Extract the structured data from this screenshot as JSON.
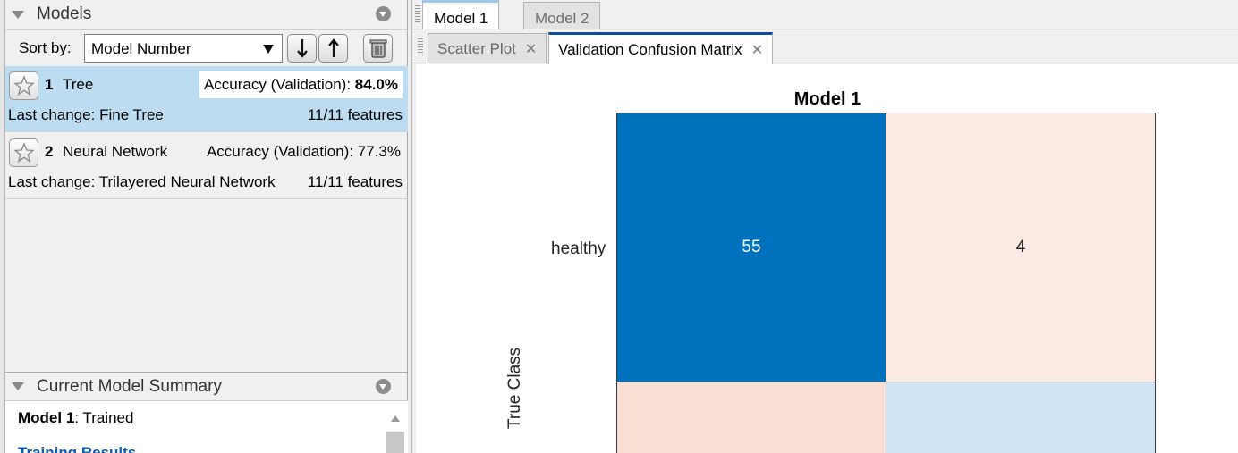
{
  "models_panel": {
    "title": "Models",
    "sort_label": "Sort by:",
    "sort_value": "Model Number",
    "models": [
      {
        "number": "1",
        "name": "Tree",
        "accuracy_label": "Accuracy (Validation):",
        "accuracy_value": "84.0%",
        "last_change": "Last change: Fine Tree",
        "features": "11/11 features",
        "selected": true
      },
      {
        "number": "2",
        "name": "Neural Network",
        "accuracy_label": "Accuracy (Validation):",
        "accuracy_value": "77.3%",
        "last_change": "Last change: Trilayered Neural Network",
        "features": "11/11 features",
        "selected": false
      }
    ]
  },
  "summary_panel": {
    "title": "Current Model Summary",
    "model_label": "Model 1",
    "status": ": Trained",
    "section_link": "Training Results"
  },
  "top_tabs": [
    "Model 1",
    "Model 2"
  ],
  "doc_tabs": [
    "Scatter Plot",
    "Validation Confusion Matrix"
  ],
  "chart": {
    "title": "Model 1",
    "y_axis_label": "True Class",
    "row_labels": [
      "healthy"
    ],
    "cells": [
      {
        "value": "55",
        "color": "#0072bd"
      },
      {
        "value": "4",
        "color": "#fbe9e3"
      },
      {
        "value": "",
        "color": "#f8dfd4"
      },
      {
        "value": "",
        "color": "#cfe3f2"
      }
    ]
  },
  "chart_data": {
    "type": "heatmap",
    "title": "Model 1",
    "ylabel": "True Class",
    "rows": [
      "healthy",
      ""
    ],
    "matrix": [
      [
        55,
        4
      ],
      [
        null,
        null
      ]
    ]
  }
}
